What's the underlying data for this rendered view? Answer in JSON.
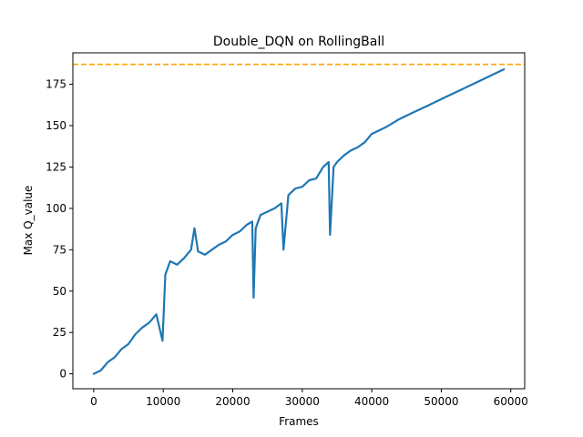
{
  "chart_data": {
    "type": "line",
    "title": "Double_DQN on RollingBall",
    "xlabel": "Frames",
    "ylabel": "Max Q_value",
    "xlim": [
      -3000,
      62000
    ],
    "ylim": [
      -9,
      194
    ],
    "xticks": [
      0,
      10000,
      20000,
      30000,
      40000,
      50000,
      60000
    ],
    "yticks": [
      0,
      25,
      50,
      75,
      100,
      125,
      150,
      175
    ],
    "grid": false,
    "legend": "none",
    "reference_line": {
      "y": 187,
      "style": "dashed",
      "color": "#ffa500"
    },
    "series": [
      {
        "color": "#1f77b4",
        "x": [
          0,
          1000,
          2000,
          3000,
          4000,
          5000,
          6000,
          7000,
          8000,
          9000,
          9900,
          10300,
          11000,
          12000,
          13000,
          14000,
          14500,
          15000,
          16000,
          17000,
          18000,
          19000,
          20000,
          21000,
          22000,
          22800,
          23000,
          23300,
          24000,
          25000,
          26000,
          27000,
          27300,
          28000,
          29000,
          30000,
          31000,
          32000,
          33000,
          33800,
          34000,
          34500,
          35000,
          36000,
          37000,
          38000,
          39000,
          40000,
          42000,
          44000,
          46000,
          48000,
          50000,
          52000,
          54000,
          56000,
          58000,
          59000
        ],
        "y": [
          0,
          2,
          7,
          10,
          15,
          18,
          24,
          28,
          31,
          36,
          20,
          60,
          68,
          66,
          70,
          75,
          88,
          74,
          72,
          75,
          78,
          80,
          84,
          86,
          90,
          92,
          46,
          88,
          96,
          98,
          100,
          103,
          75,
          108,
          112,
          113,
          117,
          118,
          125,
          128,
          84,
          125,
          128,
          132,
          135,
          137,
          140,
          145,
          149,
          154,
          158,
          162,
          166,
          170,
          174,
          178,
          182,
          184
        ]
      }
    ]
  }
}
